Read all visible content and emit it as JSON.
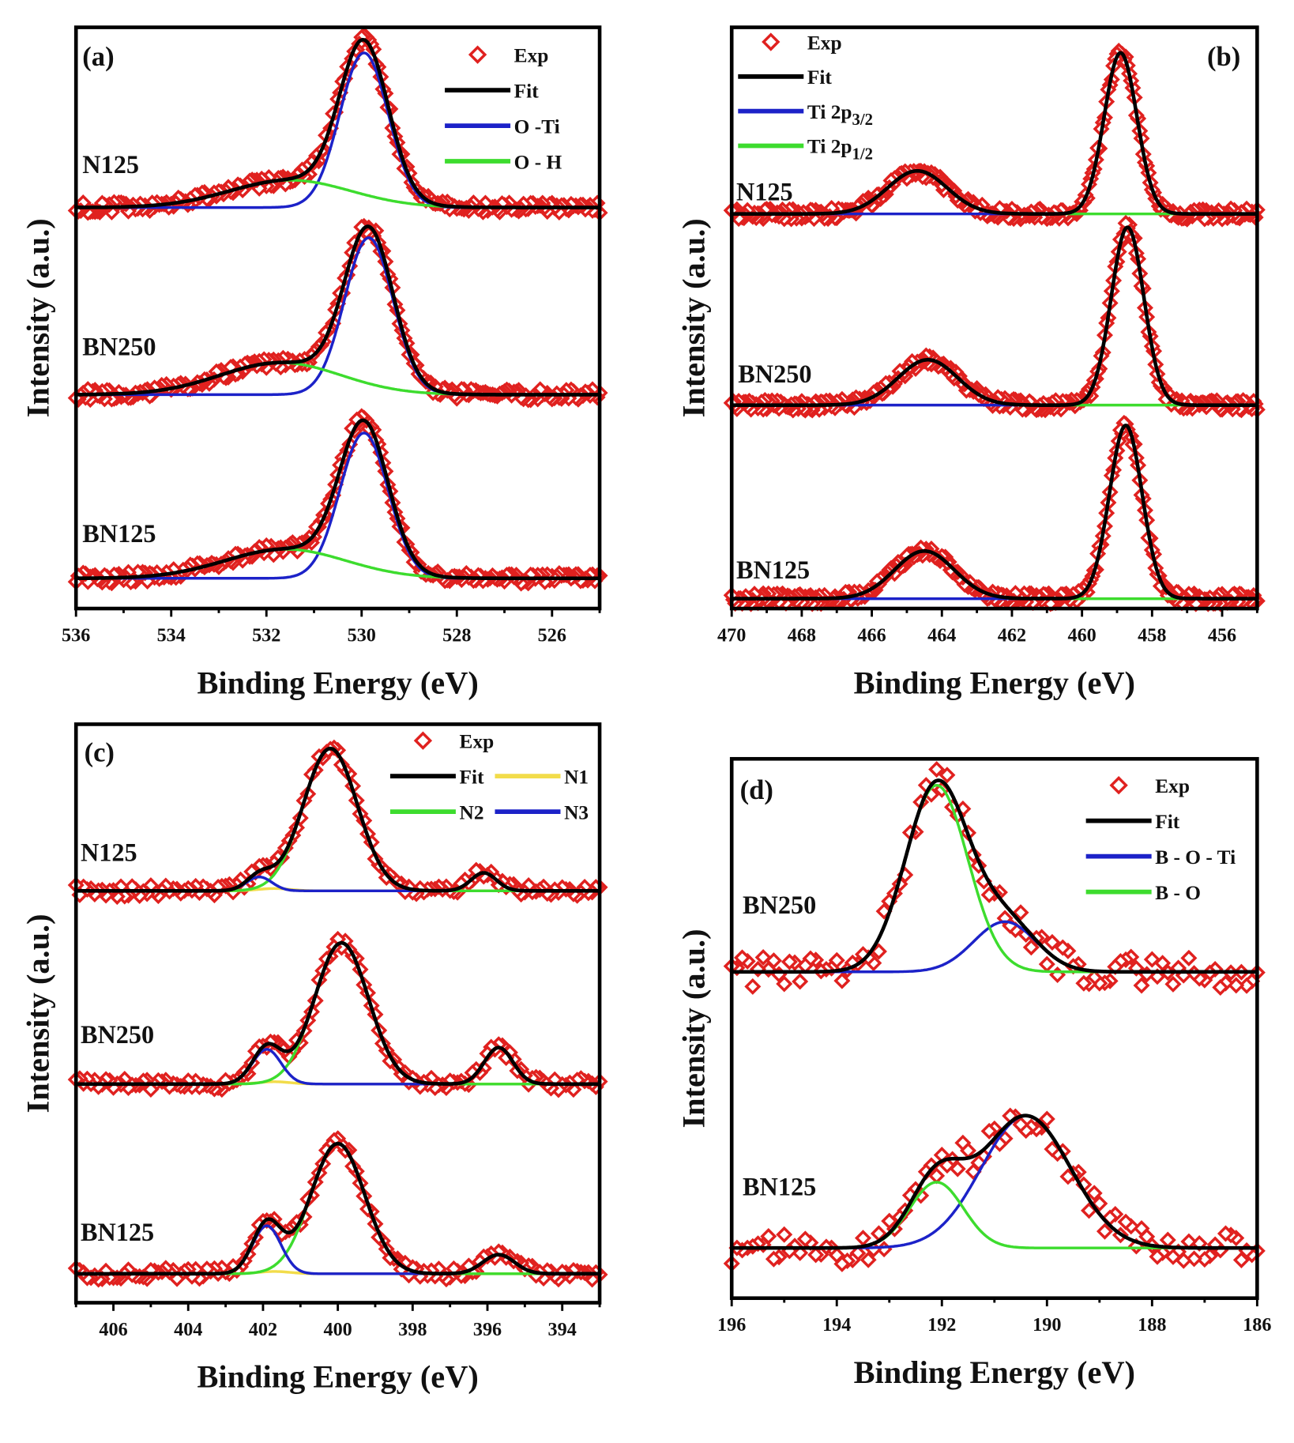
{
  "chart_data": [
    {
      "panel_label": "(a)",
      "type": "line",
      "xlabel": "Binding Energy (eV)",
      "ylabel": "Intensity (a.u.)",
      "xlim": [
        536,
        525
      ],
      "ylim": [
        0,
        100
      ],
      "xticks": [
        536,
        534,
        532,
        530,
        528,
        526
      ],
      "minor_step": 1,
      "legend_position": "top-right",
      "legend": [
        {
          "name": "Exp",
          "kind": "marker",
          "color": "#e0211f"
        },
        {
          "name": "Fit",
          "kind": "line",
          "color": "#000000"
        },
        {
          "name": "O -Ti",
          "kind": "line",
          "color": "#1c22c8"
        },
        {
          "name": "O - H",
          "kind": "line",
          "color": "#3ddc2e"
        }
      ],
      "samples": [
        {
          "name": "N125",
          "baseline": 69,
          "components": [
            {
              "legend": "O -Ti",
              "peaks": [
                {
                  "center": 529.95,
                  "amplitude": 26.6,
                  "fwhm": 1.2
                }
              ]
            },
            {
              "legend": "O - H",
              "peaks": [
                {
                  "center": 531.5,
                  "amplitude": 4.7,
                  "fwhm": 3.0
                }
              ]
            }
          ]
        },
        {
          "name": "BN250",
          "baseline": 36.8,
          "components": [
            {
              "legend": "O -Ti",
              "peaks": [
                {
                  "center": 529.85,
                  "amplitude": 27.0,
                  "fwhm": 1.2
                }
              ]
            },
            {
              "legend": "O - H",
              "peaks": [
                {
                  "center": 531.7,
                  "amplitude": 5.5,
                  "fwhm": 3.0
                }
              ]
            }
          ]
        },
        {
          "name": "BN125",
          "baseline": 5.2,
          "components": [
            {
              "legend": "O -Ti",
              "peaks": [
                {
                  "center": 529.95,
                  "amplitude": 25.0,
                  "fwhm": 1.2
                }
              ]
            },
            {
              "legend": "O - H",
              "peaks": [
                {
                  "center": 531.6,
                  "amplitude": 5.0,
                  "fwhm": 3.0
                }
              ]
            }
          ]
        }
      ]
    },
    {
      "panel_label": "(b)",
      "type": "line",
      "xlabel": "Binding Energy (eV)",
      "ylabel": "Intensity (a.u.)",
      "xlim": [
        470,
        455
      ],
      "ylim": [
        0,
        100
      ],
      "xticks": [
        470,
        468,
        466,
        464,
        462,
        460,
        458,
        456
      ],
      "minor_step": 1,
      "legend_position": "top-left",
      "legend": [
        {
          "name": "Exp",
          "kind": "marker",
          "color": "#e0211f"
        },
        {
          "name": "Fit",
          "kind": "line",
          "color": "#000000"
        },
        {
          "name": "Ti 2p",
          "sub": "3/2",
          "kind": "line",
          "color": "#1c22c8"
        },
        {
          "name": "Ti 2p",
          "sub": "1/2",
          "kind": "line",
          "color": "#3ddc2e"
        }
      ],
      "samples": [
        {
          "name": "N125",
          "baseline": 67.9,
          "components": [
            {
              "legend": "Ti 2p3/2",
              "peaks": [
                {
                  "center": 458.9,
                  "amplitude": 27.7,
                  "fwhm": 1.1
                }
              ]
            },
            {
              "legend": "Ti 2p1/2",
              "peaks": [
                {
                  "center": 464.7,
                  "amplitude": 7.4,
                  "fwhm": 2.0
                }
              ]
            }
          ]
        },
        {
          "name": "BN250",
          "baseline": 35.0,
          "components": [
            {
              "legend": "Ti 2p3/2",
              "peaks": [
                {
                  "center": 458.7,
                  "amplitude": 30.6,
                  "fwhm": 1.1
                }
              ]
            },
            {
              "legend": "Ti 2p1/2",
              "peaks": [
                {
                  "center": 464.4,
                  "amplitude": 7.8,
                  "fwhm": 2.0
                }
              ]
            }
          ]
        },
        {
          "name": "BN125",
          "baseline": 1.7,
          "components": [
            {
              "legend": "Ti 2p3/2",
              "peaks": [
                {
                  "center": 458.75,
                  "amplitude": 29.8,
                  "fwhm": 1.1
                }
              ]
            },
            {
              "legend": "Ti 2p1/2",
              "peaks": [
                {
                  "center": 464.5,
                  "amplitude": 8.2,
                  "fwhm": 2.0
                }
              ]
            }
          ]
        }
      ]
    },
    {
      "panel_label": "(c)",
      "type": "line",
      "xlabel": "Binding Energy (eV)",
      "ylabel": "Intensity (a.u.)",
      "xlim": [
        407,
        393
      ],
      "ylim": [
        0,
        100
      ],
      "xticks": [
        406,
        404,
        402,
        400,
        398,
        396,
        394
      ],
      "minor_step": 1,
      "legend_position": "top-right",
      "legend": [
        {
          "name": "Exp",
          "kind": "marker",
          "color": "#e0211f"
        },
        {
          "name": "Fit",
          "kind": "line",
          "color": "#000000"
        },
        {
          "name": "N1",
          "kind": "line",
          "color": "#f2dc4a"
        },
        {
          "name": "N2",
          "kind": "line",
          "color": "#3ddc2e"
        },
        {
          "name": "N3",
          "kind": "line",
          "color": "#1c22c8"
        }
      ],
      "samples": [
        {
          "name": "N125",
          "baseline": 71.2,
          "components": [
            {
              "legend": "N1",
              "peaks": [
                {
                  "center": 401.7,
                  "amplitude": 0.4,
                  "fwhm": 1.0
                }
              ]
            },
            {
              "legend": "N2",
              "peaks": [
                {
                  "center": 400.2,
                  "amplitude": 24.6,
                  "fwhm": 1.7
                }
              ]
            },
            {
              "legend": "N3",
              "peaks": [
                {
                  "center": 402.1,
                  "amplitude": 2.4,
                  "fwhm": 0.8
                },
                {
                  "center": 396.1,
                  "amplitude": 3.1,
                  "fwhm": 0.8
                }
              ]
            }
          ]
        },
        {
          "name": "BN250",
          "baseline": 37.8,
          "components": [
            {
              "legend": "N1",
              "peaks": [
                {
                  "center": 401.7,
                  "amplitude": 0.4,
                  "fwhm": 1.0
                }
              ]
            },
            {
              "legend": "N2",
              "peaks": [
                {
                  "center": 399.9,
                  "amplitude": 24.4,
                  "fwhm": 1.7
                }
              ]
            },
            {
              "legend": "N3",
              "peaks": [
                {
                  "center": 401.9,
                  "amplitude": 6.0,
                  "fwhm": 0.9
                },
                {
                  "center": 395.7,
                  "amplitude": 6.3,
                  "fwhm": 0.9
                }
              ]
            }
          ]
        },
        {
          "name": "BN125",
          "baseline": 5.0,
          "components": [
            {
              "legend": "N1",
              "peaks": [
                {
                  "center": 401.7,
                  "amplitude": 0.4,
                  "fwhm": 1.0
                }
              ]
            },
            {
              "legend": "N2",
              "peaks": [
                {
                  "center": 400.0,
                  "amplitude": 22.5,
                  "fwhm": 1.7
                }
              ]
            },
            {
              "legend": "N3",
              "peaks": [
                {
                  "center": 401.9,
                  "amplitude": 8.3,
                  "fwhm": 0.9
                },
                {
                  "center": 395.7,
                  "amplitude": 3.3,
                  "fwhm": 1.0
                }
              ]
            }
          ]
        }
      ]
    },
    {
      "panel_label": "(d)",
      "type": "line",
      "xlabel": "Binding Energy (eV)",
      "ylabel": "Intensity (a.u.)",
      "xlim": [
        196,
        186
      ],
      "ylim": [
        0,
        100
      ],
      "xticks": [
        196,
        194,
        192,
        190,
        188,
        186
      ],
      "minor_step": 1,
      "legend_position": "top-right",
      "legend": [
        {
          "name": "Exp",
          "kind": "marker",
          "color": "#e0211f"
        },
        {
          "name": "Fit",
          "kind": "line",
          "color": "#000000"
        },
        {
          "name": "B - O - Ti",
          "kind": "line",
          "color": "#1c22c8"
        },
        {
          "name": "B - O",
          "kind": "line",
          "color": "#3ddc2e"
        }
      ],
      "samples": [
        {
          "name": "BN250",
          "baseline": 60.5,
          "components": [
            {
              "legend": "B - O - Ti",
              "peaks": [
                {
                  "center": 190.8,
                  "amplitude": 9.3,
                  "fwhm": 1.4
                }
              ]
            },
            {
              "legend": "B - O",
              "peaks": [
                {
                  "center": 192.1,
                  "amplitude": 34.6,
                  "fwhm": 1.4
                }
              ]
            }
          ]
        },
        {
          "name": "BN125",
          "baseline": 9.3,
          "components": [
            {
              "legend": "B - O - Ti",
              "peaks": [
                {
                  "center": 190.4,
                  "amplitude": 24.5,
                  "fwhm": 2.0
                }
              ]
            },
            {
              "legend": "B - O",
              "peaks": [
                {
                  "center": 192.1,
                  "amplitude": 12.2,
                  "fwhm": 1.2
                }
              ]
            }
          ]
        }
      ]
    }
  ]
}
